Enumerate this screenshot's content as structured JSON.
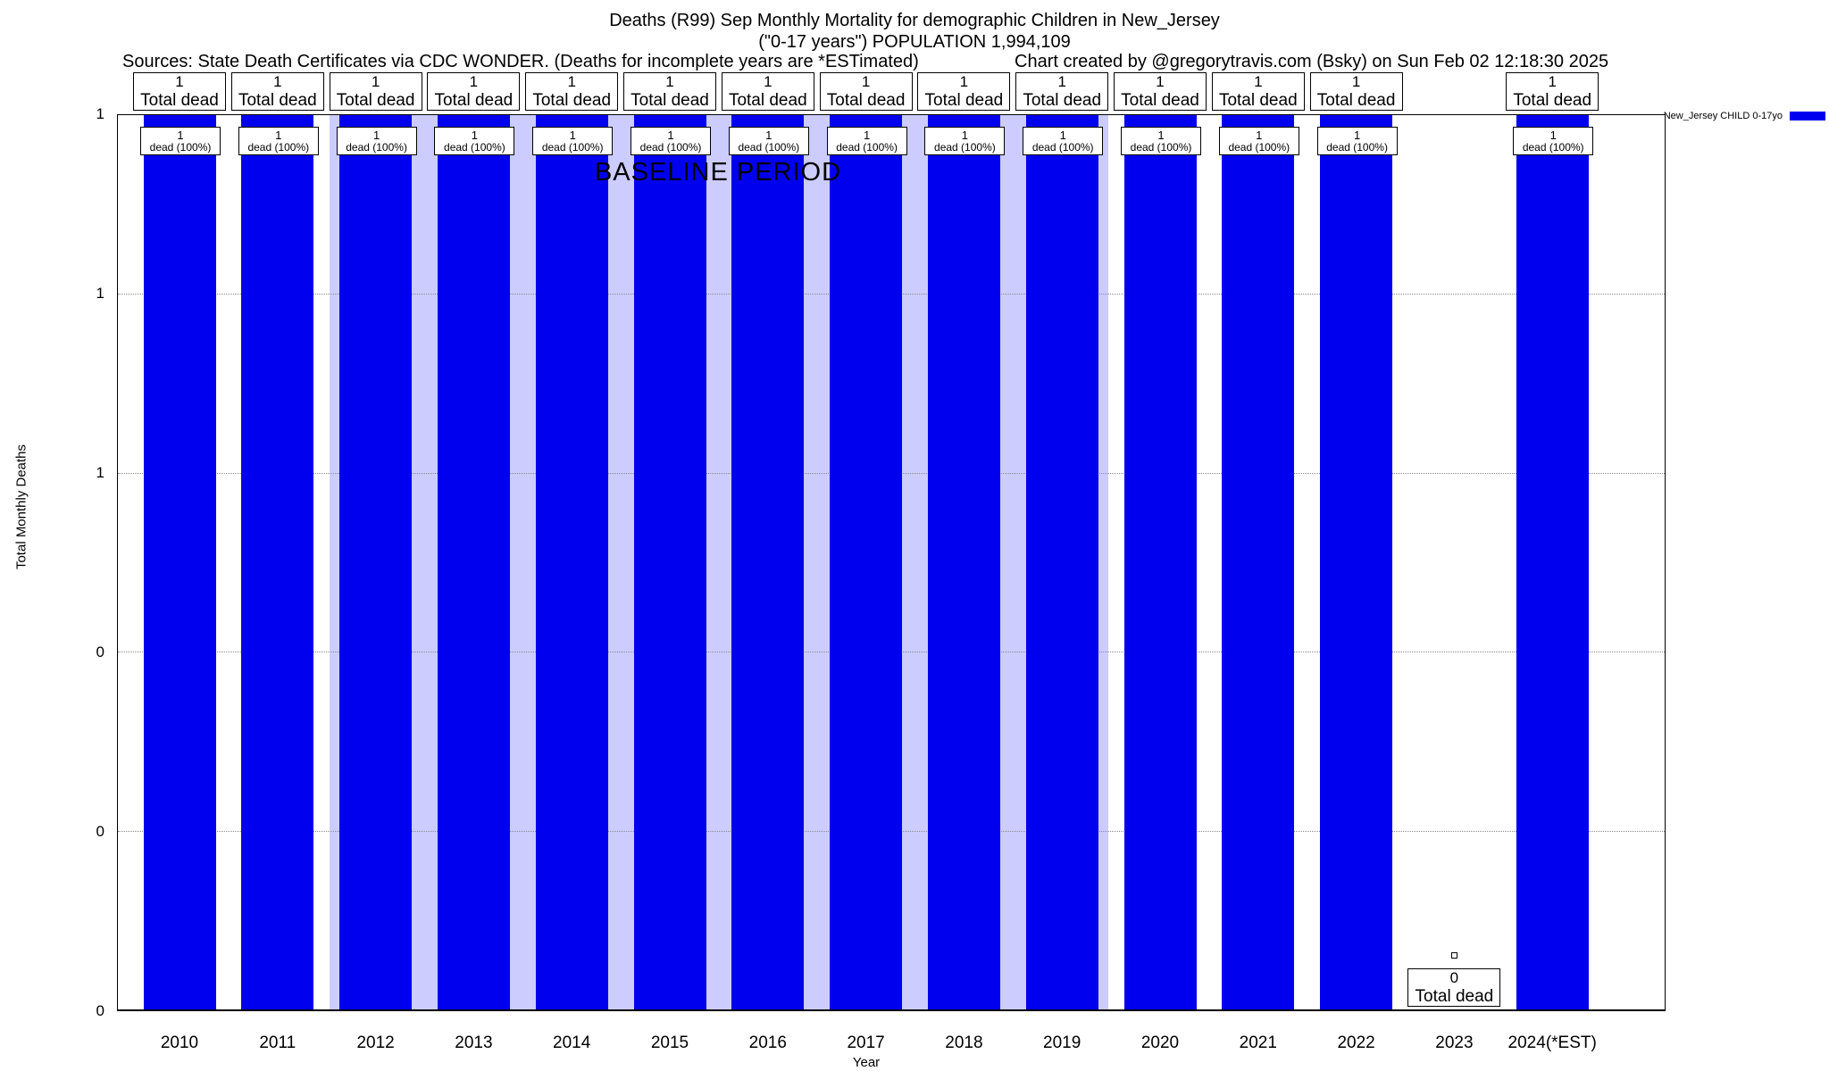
{
  "header": {
    "title_line1": "Deaths (R99) Sep Monthly Mortality for demographic Children in New_Jersey",
    "title_line2": "(\"0-17 years\") POPULATION 1,994,109",
    "source_line": "Sources: State Death Certificates via CDC WONDER. (Deaths for incomplete years are *ESTimated)",
    "credit_line": "Chart created by @gregorytravis.com (Bsky) on Sun Feb 02 12:18:30 2025"
  },
  "legend": {
    "label": "New_Jersey CHILD 0-17yo",
    "color": "#0000ee",
    "position": "top-right"
  },
  "chart_data": {
    "type": "bar",
    "title": "Deaths (R99) Sep Monthly Mortality for demographic Children in New_Jersey",
    "subtitle": "(\"0-17 years\") POPULATION 1,994,109",
    "xlabel": "Year",
    "ylabel": "Total Monthly Deaths",
    "ylim": [
      0,
      1
    ],
    "grid": "horizontal-dotted",
    "y_tick_labels_top_to_bottom": [
      "1",
      "1",
      "1",
      "0",
      "0",
      "0"
    ],
    "categories": [
      "2010",
      "2011",
      "2012",
      "2013",
      "2014",
      "2015",
      "2016",
      "2017",
      "2018",
      "2019",
      "2020",
      "2021",
      "2022",
      "2023",
      "2024(*EST)"
    ],
    "values": [
      1,
      1,
      1,
      1,
      1,
      1,
      1,
      1,
      1,
      1,
      1,
      1,
      1,
      0,
      1
    ],
    "bar_top_label_suffix": "Total dead",
    "bar_inner_label_suffix": "dead (100%)",
    "inner_label_percent": "100%",
    "annotation": "BASELINE PERIOD",
    "baseline_band": {
      "start_category": "2012",
      "end_category": "2019",
      "color": "#ccccff"
    },
    "bar_color": "#0000ee",
    "zero_year_label": {
      "value": "0",
      "suffix": "Total dead",
      "category": "2023"
    }
  }
}
